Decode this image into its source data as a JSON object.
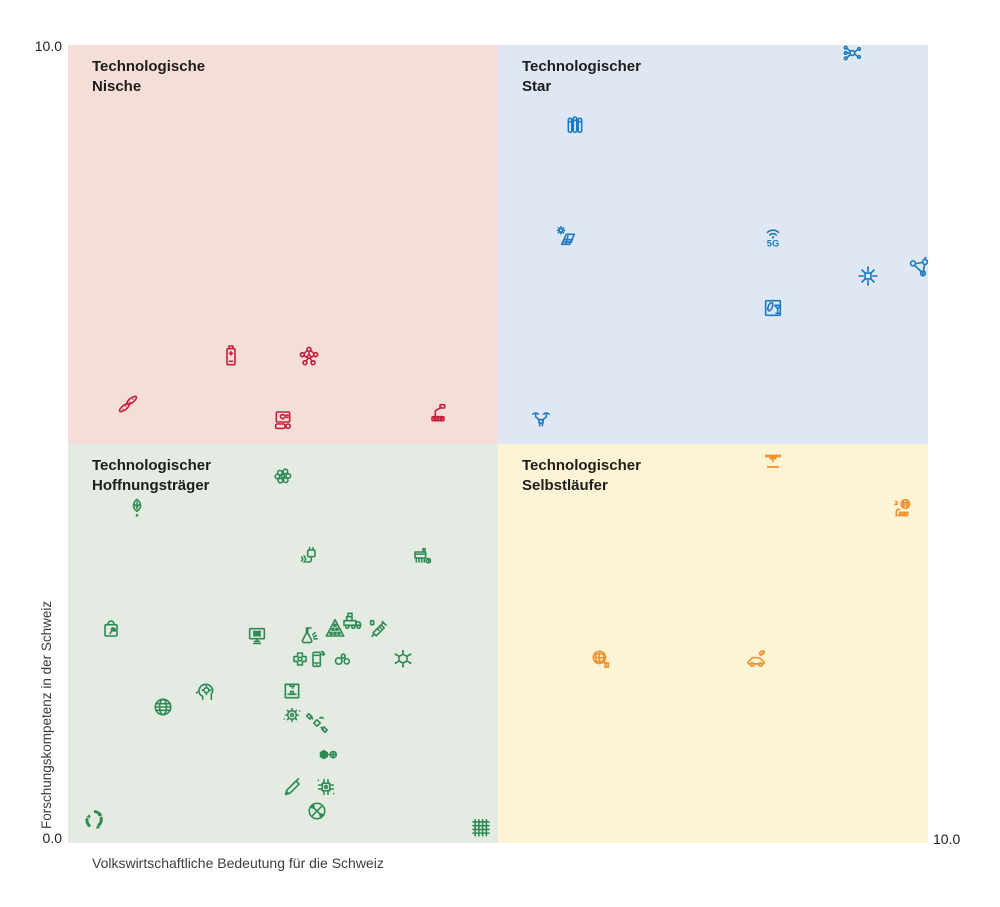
{
  "chart_data": {
    "type": "scatter",
    "title": "",
    "xlabel": "Volkswirtschaftliche Bedeutung für die Schweiz",
    "ylabel": "Forschungskompetenz in der Schweiz",
    "xlim": [
      0,
      10
    ],
    "ylim": [
      0,
      10
    ],
    "grid": false,
    "ticks": {
      "y_max": "10.0",
      "y_min": "0.0",
      "x_max": "10.0"
    },
    "quadrants": [
      {
        "id": "nische",
        "label": "Technologische\nNische",
        "position": "top-left",
        "x_range": [
          0,
          5
        ],
        "y_range": [
          5,
          10
        ],
        "bg_color": "#f5ded7",
        "icon_color": "#c2203d"
      },
      {
        "id": "star",
        "label": "Technologischer\nStar",
        "position": "top-right",
        "x_range": [
          5,
          10
        ],
        "y_range": [
          5,
          10
        ],
        "bg_color": "#dfe7f4",
        "icon_color": "#1b79c0"
      },
      {
        "id": "hoffnungstraeger",
        "label": "Technologischer\nHoffnungsträger",
        "position": "bottom-left",
        "x_range": [
          0,
          5
        ],
        "y_range": [
          0,
          5
        ],
        "bg_color": "#e4ebe3",
        "icon_color": "#2e8a53"
      },
      {
        "id": "selbstlaeufer",
        "label": "Technologischer\nSelbstläufer",
        "position": "bottom-right",
        "x_range": [
          5,
          10
        ],
        "y_range": [
          0,
          5
        ],
        "bg_color": "#fdf4d5",
        "icon_color": "#f0922e"
      }
    ],
    "points": [
      {
        "icon": "seed-pods",
        "quadrant": "nische",
        "x": 0.7,
        "y": 5.5
      },
      {
        "icon": "battery",
        "quadrant": "nische",
        "x": 1.9,
        "y": 6.1
      },
      {
        "icon": "molecular-lattice",
        "quadrant": "nische",
        "x": 2.8,
        "y": 6.1
      },
      {
        "icon": "health-monitor",
        "quadrant": "nische",
        "x": 2.5,
        "y": 5.3
      },
      {
        "icon": "industrial-robot",
        "quadrant": "nische",
        "x": 4.3,
        "y": 5.4
      },
      {
        "icon": "ai-network",
        "quadrant": "star",
        "x": 9.1,
        "y": 9.9
      },
      {
        "icon": "test-tubes",
        "quadrant": "star",
        "x": 5.9,
        "y": 9.0
      },
      {
        "icon": "solar-panel",
        "quadrant": "star",
        "x": 5.8,
        "y": 7.6
      },
      {
        "icon": "wireless-5g",
        "quadrant": "star",
        "x": 8.2,
        "y": 7.6
      },
      {
        "icon": "neural-chip",
        "quadrant": "star",
        "x": 9.3,
        "y": 7.1
      },
      {
        "icon": "iot-network",
        "quadrant": "star",
        "x": 9.9,
        "y": 7.2
      },
      {
        "icon": "food-tech",
        "quadrant": "star",
        "x": 8.2,
        "y": 6.7
      },
      {
        "icon": "drone",
        "quadrant": "star",
        "x": 5.5,
        "y": 5.3
      },
      {
        "icon": "brain-organoid",
        "quadrant": "hoffnungstraeger",
        "x": 2.5,
        "y": 4.6
      },
      {
        "icon": "plant-seedling",
        "quadrant": "hoffnungstraeger",
        "x": 0.8,
        "y": 4.2
      },
      {
        "icon": "wireless-charging",
        "quadrant": "hoffnungstraeger",
        "x": 2.8,
        "y": 3.6
      },
      {
        "icon": "bioreactor",
        "quadrant": "hoffnungstraeger",
        "x": 4.1,
        "y": 3.6
      },
      {
        "icon": "eco-bag",
        "quadrant": "hoffnungstraeger",
        "x": 0.5,
        "y": 2.7
      },
      {
        "icon": "atom-monitor",
        "quadrant": "hoffnungstraeger",
        "x": 2.2,
        "y": 2.6
      },
      {
        "icon": "lab-flask",
        "quadrant": "hoffnungstraeger",
        "x": 2.8,
        "y": 2.6
      },
      {
        "icon": "nutrition-pyramid",
        "quadrant": "hoffnungstraeger",
        "x": 3.1,
        "y": 2.7
      },
      {
        "icon": "autonomous-vehicle",
        "quadrant": "hoffnungstraeger",
        "x": 3.3,
        "y": 2.8
      },
      {
        "icon": "vaccine-syringe",
        "quadrant": "hoffnungstraeger",
        "x": 3.6,
        "y": 2.7
      },
      {
        "icon": "medical-implant",
        "quadrant": "hoffnungstraeger",
        "x": 2.7,
        "y": 2.3
      },
      {
        "icon": "sensor-phone",
        "quadrant": "hoffnungstraeger",
        "x": 2.9,
        "y": 2.3
      },
      {
        "icon": "co2-molecules",
        "quadrant": "hoffnungstraeger",
        "x": 3.2,
        "y": 2.3
      },
      {
        "icon": "neuro-molecule",
        "quadrant": "hoffnungstraeger",
        "x": 3.9,
        "y": 2.3
      },
      {
        "icon": "ai-head",
        "quadrant": "hoffnungstraeger",
        "x": 1.6,
        "y": 1.9
      },
      {
        "icon": "mesh-globe",
        "quadrant": "hoffnungstraeger",
        "x": 1.1,
        "y": 1.7
      },
      {
        "icon": "printer-box",
        "quadrant": "hoffnungstraeger",
        "x": 2.6,
        "y": 1.9
      },
      {
        "icon": "microbe-gear",
        "quadrant": "hoffnungstraeger",
        "x": 2.6,
        "y": 1.6
      },
      {
        "icon": "satellite",
        "quadrant": "hoffnungstraeger",
        "x": 2.9,
        "y": 1.5
      },
      {
        "icon": "nanoparticle",
        "quadrant": "hoffnungstraeger",
        "x": 3.0,
        "y": 1.1
      },
      {
        "icon": "smart-pen",
        "quadrant": "hoffnungstraeger",
        "x": 2.6,
        "y": 0.7
      },
      {
        "icon": "chip-microbe",
        "quadrant": "hoffnungstraeger",
        "x": 3.0,
        "y": 0.7
      },
      {
        "icon": "precision-tools",
        "quadrant": "hoffnungstraeger",
        "x": 2.9,
        "y": 0.4
      },
      {
        "icon": "recycling",
        "quadrant": "hoffnungstraeger",
        "x": 0.3,
        "y": 0.3
      },
      {
        "icon": "textile-grid",
        "quadrant": "hoffnungstraeger",
        "x": 4.8,
        "y": 0.2
      },
      {
        "icon": "additive-manufacturing",
        "quadrant": "selbstlaeufer",
        "x": 8.2,
        "y": 4.8
      },
      {
        "icon": "robotic-automation",
        "quadrant": "selbstlaeufer",
        "x": 9.7,
        "y": 4.2
      },
      {
        "icon": "textile-yarn",
        "quadrant": "selbstlaeufer",
        "x": 6.2,
        "y": 2.3
      },
      {
        "icon": "eco-car",
        "quadrant": "selbstlaeufer",
        "x": 8.0,
        "y": 2.3
      }
    ]
  }
}
